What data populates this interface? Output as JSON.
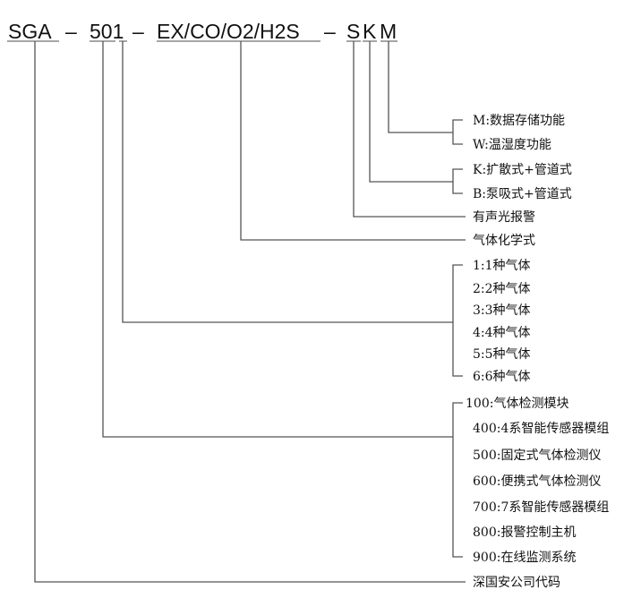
{
  "code": {
    "parts": [
      "SGA",
      "501",
      "EX/CO/O2/H2S",
      "S",
      "K",
      "M"
    ],
    "separator": "–"
  },
  "options": {
    "M": [
      "M:数据存储功能",
      "W:温湿度功能"
    ],
    "K": [
      "K:扩散式+管道式",
      "B:泵吸式+管道式"
    ],
    "S": "有声光报警",
    "gas": "气体化学式",
    "gas_count": [
      "1:1种气体",
      "2:2种气体",
      "3:3种气体",
      "4:4种气体",
      "5:5种气体",
      "6:6种气体"
    ],
    "series": [
      "100:气体检测模块",
      "400:4系智能传感器模组",
      "500:固定式气体检测仪",
      "600:便携式气体检测仪",
      "700:7系智能传感器模组",
      "800:报警控制主机",
      "900:在线监测系统"
    ],
    "company": "深国安公司代码"
  }
}
